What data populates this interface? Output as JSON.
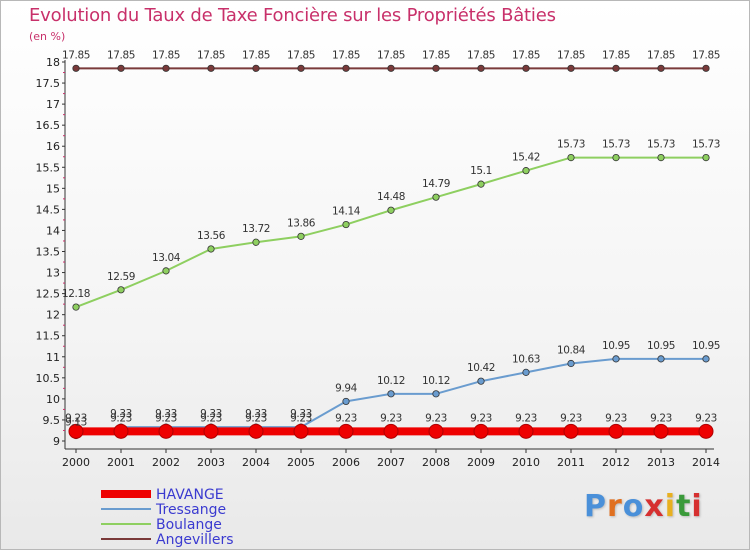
{
  "title": "Evolution du Taux de Taxe Foncière sur les Propriétés Bâties",
  "unit": "(en %)",
  "brand": {
    "text": "Proxiti",
    "letter_colors": [
      "#4a90d9",
      "#e07020",
      "#4a90d9",
      "#d63030",
      "#e8b020",
      "#3a9a3a",
      "#d63030"
    ]
  },
  "chart_data": {
    "type": "line",
    "x": [
      2000,
      2001,
      2002,
      2003,
      2004,
      2005,
      2006,
      2007,
      2008,
      2009,
      2010,
      2011,
      2012,
      2013,
      2014
    ],
    "ylim": [
      9,
      18
    ],
    "yticks": [
      "9",
      "9.5",
      "10",
      "10.5",
      "11",
      "11.5",
      "12",
      "12.5",
      "13",
      "13.5",
      "14",
      "14.5",
      "15",
      "15.5",
      "16",
      "16.5",
      "17",
      "17.5",
      "18"
    ],
    "grid": false,
    "legend_position": "bottom-left",
    "series": [
      {
        "name": "HAVANGE",
        "color": "#ee0000",
        "emphasis": true,
        "values": [
          9.23,
          9.23,
          9.23,
          9.23,
          9.23,
          9.23,
          9.23,
          9.23,
          9.23,
          9.23,
          9.23,
          9.23,
          9.23,
          9.23,
          9.23
        ],
        "labels": [
          "9.23",
          "9.23",
          "9.23",
          "9.23",
          "9.23",
          "9.23",
          "9.23",
          "9.23",
          "9.23",
          "9.23",
          "9.23",
          "9.23",
          "9.23",
          "9.23",
          "9.23"
        ]
      },
      {
        "name": "Tressange",
        "color": "#6a9ccf",
        "emphasis": false,
        "values": [
          9.13,
          9.33,
          9.33,
          9.33,
          9.33,
          9.33,
          9.94,
          10.12,
          10.12,
          10.42,
          10.63,
          10.84,
          10.95,
          10.95,
          10.95
        ],
        "labels": [
          "9.13",
          "9.33",
          "9.33",
          "9.33",
          "9.33",
          "9.33",
          "9.94",
          "10.12",
          "10.12",
          "10.42",
          "10.63",
          "10.84",
          "10.95",
          "10.95",
          "10.95"
        ]
      },
      {
        "name": "Boulange",
        "color": "#8ecf60",
        "emphasis": false,
        "values": [
          12.18,
          12.59,
          13.04,
          13.56,
          13.72,
          13.86,
          14.14,
          14.48,
          14.79,
          15.1,
          15.42,
          15.73,
          15.73,
          15.73,
          15.73
        ],
        "labels": [
          "12.18",
          "12.59",
          "13.04",
          "13.56",
          "13.72",
          "13.86",
          "14.14",
          "14.48",
          "14.79",
          "15.1",
          "15.42",
          "15.73",
          "15.73",
          "15.73",
          "15.73"
        ]
      },
      {
        "name": "Angevillers",
        "color": "#7a3a3a",
        "emphasis": false,
        "values": [
          17.85,
          17.85,
          17.85,
          17.85,
          17.85,
          17.85,
          17.85,
          17.85,
          17.85,
          17.85,
          17.85,
          17.85,
          17.85,
          17.85,
          17.85
        ],
        "labels": [
          "17.85",
          "17.85",
          "17.85",
          "17.85",
          "17.85",
          "17.85",
          "17.85",
          "17.85",
          "17.85",
          "17.85",
          "17.85",
          "17.85",
          "17.85",
          "17.85",
          "17.85"
        ]
      }
    ]
  }
}
